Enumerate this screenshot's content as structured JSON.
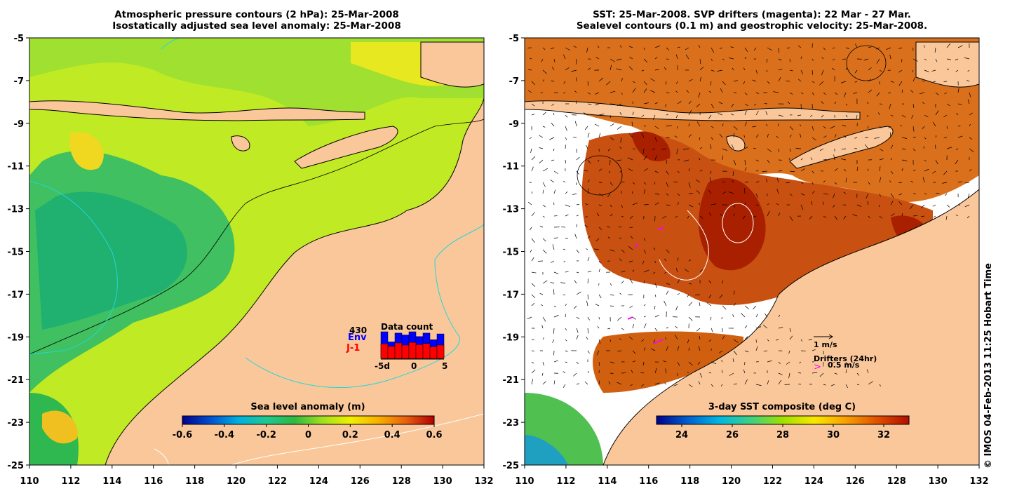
{
  "left_panel": {
    "title_line1": "Atmospheric pressure contours (2 hPa): 25-Mar-2008",
    "title_line2": "Isostatically adjusted sea level anomaly: 25-Mar-2008",
    "colorbar": {
      "label": "Sea level anomaly (m)",
      "ticks": [
        "-0.6",
        "-0.4",
        "-0.2",
        "0",
        "0.2",
        "0.4",
        "0.6"
      ]
    },
    "data_count": {
      "title": "Data count",
      "count": "430",
      "series1": "Env",
      "series2": "J-1",
      "xticks": [
        "-5d",
        "0",
        "5"
      ],
      "env_values": [
        1.0,
        0.62,
        0.95,
        0.88,
        1.0,
        0.82,
        0.95,
        0.7,
        0.92
      ],
      "j1_values": [
        0.55,
        0.45,
        0.58,
        0.5,
        0.6,
        0.52,
        0.56,
        0.44,
        0.5
      ]
    }
  },
  "right_panel": {
    "title_line1": "SST: 25-Mar-2008. SVP drifters (magenta): 22 Mar - 27 Mar.",
    "title_line2": "Sealevel contours (0.1 m) and geostrophic velocity: 25-Mar-2008.",
    "colorbar": {
      "label": "3-day SST composite (deg C)",
      "ticks": [
        "24",
        "26",
        "28",
        "30",
        "32"
      ]
    },
    "velocity_key": "1 m/s",
    "drifter_key_title": "Drifters (24hr)",
    "drifter_key_value": "0.5 m/s",
    "drifter_key_glyph": ">"
  },
  "axes": {
    "lat_ticks": [
      "-5",
      "-7",
      "-9",
      "-11",
      "-13",
      "-15",
      "-17",
      "-19",
      "-21",
      "-23",
      "-25"
    ],
    "lon_ticks": [
      "110",
      "112",
      "114",
      "116",
      "118",
      "120",
      "122",
      "124",
      "126",
      "128",
      "130",
      "132"
    ]
  },
  "colors": {
    "land": "#fac79a",
    "sla_colormap": [
      "#00008c",
      "#0050d0",
      "#00b0e0",
      "#20c890",
      "#30b840",
      "#a0e020",
      "#f0f000",
      "#f8b000",
      "#e86010",
      "#b00000"
    ],
    "sst_colormap": [
      "#00008c",
      "#0060d0",
      "#00b8e0",
      "#40d080",
      "#a0e000",
      "#f8e800",
      "#f8a000",
      "#e05000",
      "#b01000"
    ],
    "drifter": "#ff00ff"
  },
  "credit": "© IMOS 04-Feb-2013 11:25 Hobart Time"
}
